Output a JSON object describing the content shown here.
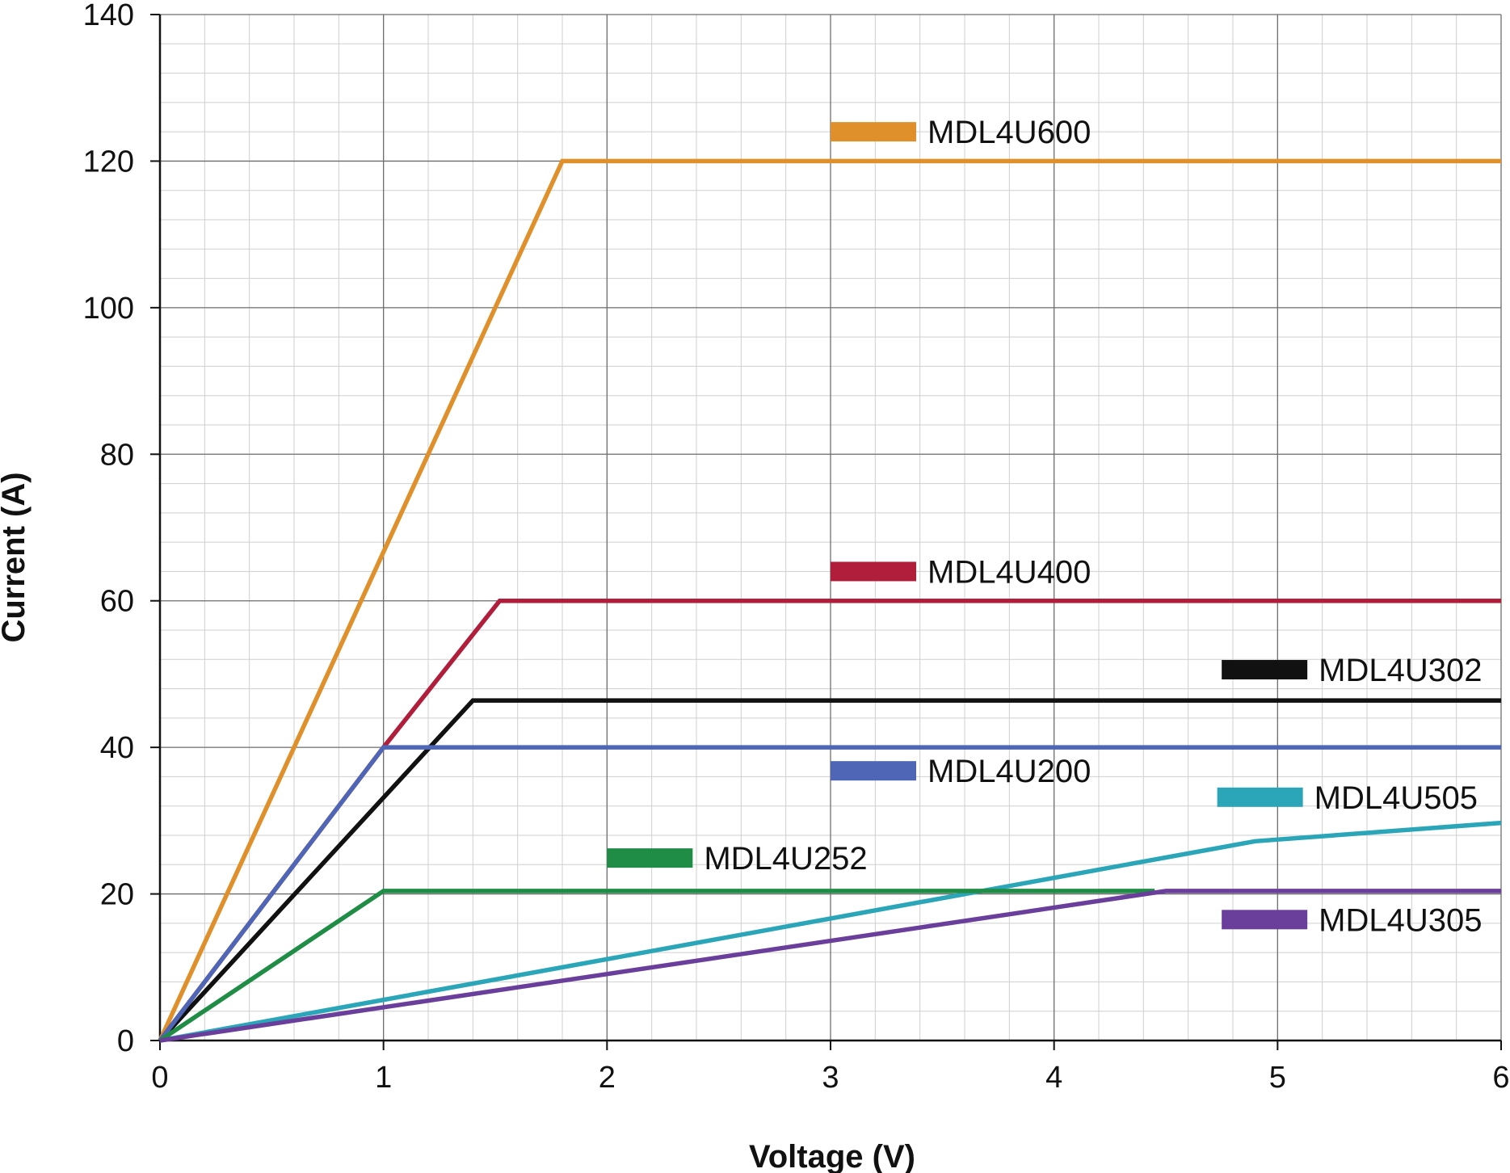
{
  "chart_data": {
    "type": "line",
    "title": "",
    "xlabel": "Voltage (V)",
    "ylabel": "Current (A)",
    "xlim": [
      0,
      6
    ],
    "ylim": [
      0,
      140
    ],
    "x_ticks": [
      "0",
      "1",
      "2",
      "3",
      "4",
      "5",
      "6"
    ],
    "y_ticks": [
      "0",
      "20",
      "40",
      "60",
      "80",
      "100",
      "120",
      "140"
    ],
    "grid": true,
    "legend_placement": "inline labels",
    "series": [
      {
        "name": "MDL4U600",
        "color": "#e0902a",
        "points": [
          [
            0,
            0
          ],
          [
            1.8,
            120
          ],
          [
            6,
            120
          ]
        ],
        "label_at": [
          3,
          124
        ]
      },
      {
        "name": "MDL4U400",
        "color": "#b01e3c",
        "points": [
          [
            0,
            0
          ],
          [
            1.0,
            40
          ],
          [
            1.52,
            60
          ],
          [
            6,
            60
          ]
        ],
        "label_at": [
          3,
          64
        ]
      },
      {
        "name": "MDL4U302",
        "color": "#111111",
        "points": [
          [
            0,
            0
          ],
          [
            1.4,
            46.4
          ],
          [
            6,
            46.4
          ]
        ],
        "label_at": [
          4.75,
          50.6
        ]
      },
      {
        "name": "MDL4U200",
        "color": "#4f65b5",
        "points": [
          [
            0,
            0
          ],
          [
            1.0,
            40
          ],
          [
            6,
            40
          ]
        ],
        "label_at": [
          3,
          36.8
        ]
      },
      {
        "name": "MDL4U505",
        "color": "#2ba6b8",
        "points": [
          [
            0,
            0
          ],
          [
            4.9,
            27.2
          ],
          [
            6,
            29.7
          ]
        ],
        "label_at": [
          4.73,
          33.2
        ]
      },
      {
        "name": "MDL4U252",
        "color": "#1f8d45",
        "points": [
          [
            0,
            0
          ],
          [
            1.0,
            20.4
          ],
          [
            4.45,
            20.4
          ]
        ],
        "label_at": [
          2.0,
          24.9
        ]
      },
      {
        "name": "MDL4U305",
        "color": "#6a3f9b",
        "points": [
          [
            0,
            0
          ],
          [
            4.5,
            20.4
          ],
          [
            6,
            20.4
          ]
        ],
        "label_at": [
          4.75,
          16.5
        ]
      }
    ]
  }
}
